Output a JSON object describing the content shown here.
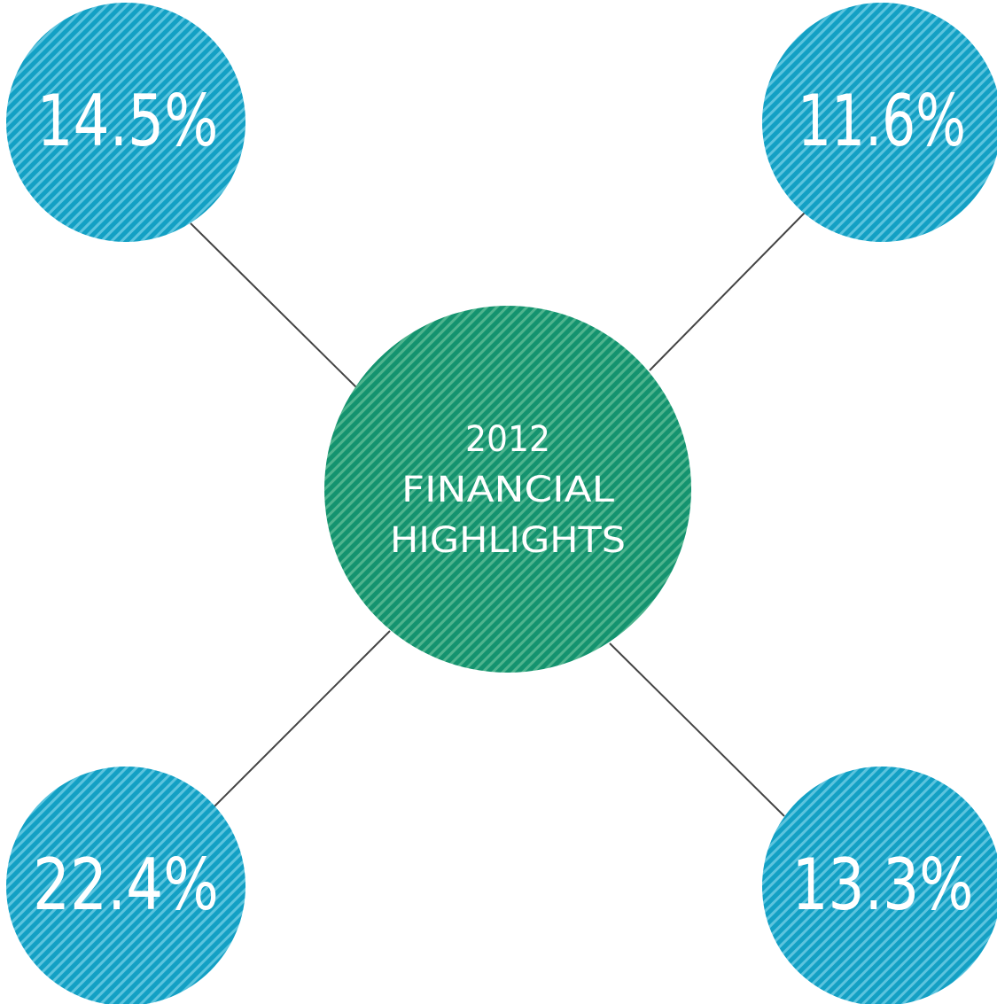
{
  "center": {
    "lines": [
      "2012",
      "FINANCIAL",
      "HIGHLIGHTS"
    ]
  },
  "nodes": [
    {
      "label": "14.5%"
    },
    {
      "label": "11.6%"
    },
    {
      "label": "22.4%"
    },
    {
      "label": "13.3%"
    }
  ]
}
